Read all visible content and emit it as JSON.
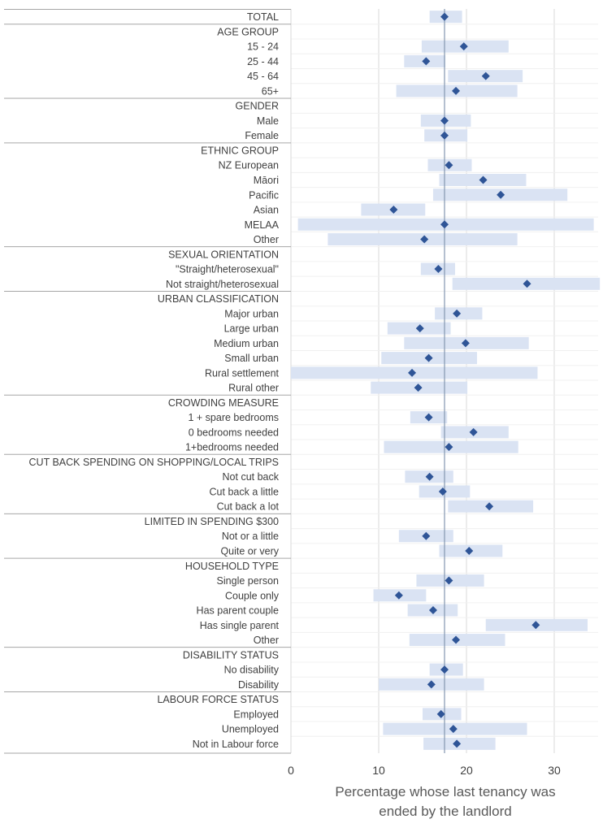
{
  "chart_data": {
    "type": "dot-range",
    "xlabel": [
      "Percentage whose last tenancy was",
      "ended by the landlord"
    ],
    "xlim": [
      0,
      35
    ],
    "xticks": [
      0,
      10,
      20,
      30
    ],
    "grid": "vertical",
    "reference_value": 17.5,
    "groups": [
      {
        "header": null,
        "rows": [
          {
            "label": "TOTAL",
            "value": 17.5,
            "low": 15.8,
            "high": 19.5
          }
        ]
      },
      {
        "header": "AGE GROUP",
        "rows": [
          {
            "label": "15 - 24",
            "value": 19.7,
            "low": 14.9,
            "high": 24.8
          },
          {
            "label": "25 - 44",
            "value": 15.4,
            "low": 12.9,
            "high": 17.6
          },
          {
            "label": "45 - 64",
            "value": 22.2,
            "low": 17.9,
            "high": 26.4
          },
          {
            "label": "65+",
            "value": 18.8,
            "low": 12.0,
            "high": 25.8
          }
        ]
      },
      {
        "header": "GENDER",
        "rows": [
          {
            "label": "Male",
            "value": 17.5,
            "low": 14.8,
            "high": 20.5
          },
          {
            "label": "Female",
            "value": 17.5,
            "low": 15.2,
            "high": 20.1
          }
        ]
      },
      {
        "header": "ETHNIC GROUP",
        "rows": [
          {
            "label": "NZ European",
            "value": 18.0,
            "low": 15.6,
            "high": 20.6
          },
          {
            "label": "Māori",
            "value": 21.9,
            "low": 16.9,
            "high": 26.8
          },
          {
            "label": "Pacific",
            "value": 23.9,
            "low": 16.2,
            "high": 31.5
          },
          {
            "label": "Asian",
            "value": 11.7,
            "low": 8.0,
            "high": 15.3
          },
          {
            "label": "MELAA",
            "value": 17.5,
            "low": 0.8,
            "high": 34.5
          },
          {
            "label": "Other",
            "value": 15.2,
            "low": 4.2,
            "high": 25.8
          }
        ]
      },
      {
        "header": "SEXUAL ORIENTATION",
        "rows": [
          {
            "label": "\"Straight/heterosexual\"",
            "value": 16.8,
            "low": 14.8,
            "high": 18.7
          },
          {
            "label": "Not straight/heterosexual",
            "value": 26.9,
            "low": 18.4,
            "high": 35.2
          }
        ]
      },
      {
        "header": "URBAN CLASSIFICATION",
        "rows": [
          {
            "label": "Major urban",
            "value": 18.9,
            "low": 16.4,
            "high": 21.8
          },
          {
            "label": "Large urban",
            "value": 14.7,
            "low": 11.0,
            "high": 18.2
          },
          {
            "label": "Medium urban",
            "value": 19.9,
            "low": 12.9,
            "high": 27.1
          },
          {
            "label": "Small urban",
            "value": 15.7,
            "low": 10.3,
            "high": 21.2
          },
          {
            "label": "Rural settlement",
            "value": 13.8,
            "low": 0.0,
            "high": 28.1
          },
          {
            "label": "Rural other",
            "value": 14.5,
            "low": 9.1,
            "high": 20.1
          }
        ]
      },
      {
        "header": "CROWDING MEASURE",
        "rows": [
          {
            "label": "1 + spare bedrooms",
            "value": 15.7,
            "low": 13.6,
            "high": 17.8
          },
          {
            "label": "0 bedrooms needed",
            "value": 20.8,
            "low": 17.1,
            "high": 24.8
          },
          {
            "label": "1+bedrooms needed",
            "value": 18.0,
            "low": 10.6,
            "high": 25.9
          }
        ]
      },
      {
        "header": "CUT BACK SPENDING ON SHOPPING/LOCAL TRIPS",
        "rows": [
          {
            "label": "Not cut back",
            "value": 15.8,
            "low": 13.0,
            "high": 18.5
          },
          {
            "label": "Cut back a little",
            "value": 17.3,
            "low": 14.6,
            "high": 20.4
          },
          {
            "label": "Cut back a lot",
            "value": 22.6,
            "low": 17.9,
            "high": 27.6
          }
        ]
      },
      {
        "header": "LIMITED IN SPENDING $300",
        "rows": [
          {
            "label": "Not or a little",
            "value": 15.4,
            "low": 12.3,
            "high": 18.5
          },
          {
            "label": "Quite or very",
            "value": 20.3,
            "low": 16.9,
            "high": 24.1
          }
        ]
      },
      {
        "header": "HOUSEHOLD TYPE",
        "rows": [
          {
            "label": "Single person",
            "value": 18.0,
            "low": 14.3,
            "high": 22.0
          },
          {
            "label": "Couple only",
            "value": 12.3,
            "low": 9.4,
            "high": 15.4
          },
          {
            "label": "Has parent couple",
            "value": 16.2,
            "low": 13.3,
            "high": 19.0
          },
          {
            "label": "Has single parent",
            "value": 27.9,
            "low": 22.2,
            "high": 33.8
          },
          {
            "label": "Other",
            "value": 18.8,
            "low": 13.5,
            "high": 24.4
          }
        ]
      },
      {
        "header": "DISABILITY STATUS",
        "rows": [
          {
            "label": "No disability",
            "value": 17.5,
            "low": 15.8,
            "high": 19.6
          },
          {
            "label": "Disability",
            "value": 16.0,
            "low": 10.0,
            "high": 22.0
          }
        ]
      },
      {
        "header": "LABOUR FORCE STATUS",
        "rows": [
          {
            "label": "Employed",
            "value": 17.1,
            "low": 15.0,
            "high": 19.4
          },
          {
            "label": "Unemployed",
            "value": 18.5,
            "low": 10.5,
            "high": 26.9
          },
          {
            "label": "Not in Labour force",
            "value": 18.9,
            "low": 15.1,
            "high": 23.3
          }
        ]
      }
    ],
    "colors": {
      "range_bar": "#dae3f3",
      "marker": "#2f5597",
      "grid": "#d9d9d9",
      "reference_line": "#8497b0",
      "divider": "#a6a6a6"
    }
  }
}
